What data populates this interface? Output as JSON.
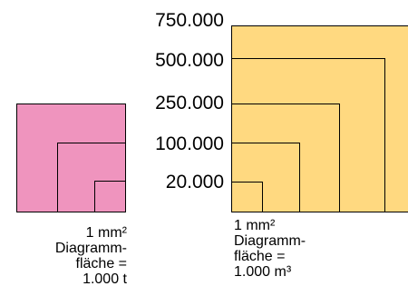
{
  "left_diagram": {
    "color": "#ef94be",
    "caption_lines": [
      "1 mm²",
      "Diagramm-",
      "fläche =",
      "1.000 t"
    ]
  },
  "right_diagram": {
    "color": "#ffd980",
    "scale_labels": [
      "750.000",
      "500.000",
      "250.000",
      "100.000",
      "20.000"
    ],
    "caption_lines": [
      "1 mm²",
      "Diagramm-",
      "fläche =",
      "1.000 m³"
    ]
  }
}
